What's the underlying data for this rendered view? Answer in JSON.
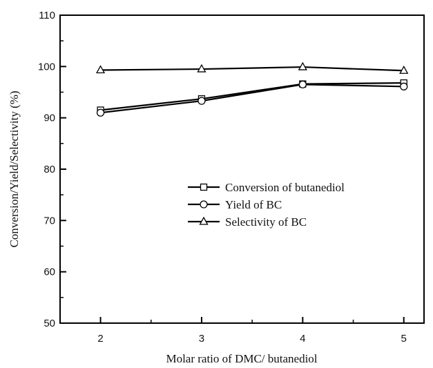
{
  "chart_data": {
    "type": "line",
    "title": "",
    "xlabel": "Molar ratio of DMC/ butanediol",
    "ylabel": "Conversion/Yield/Selectivity (%)",
    "x": [
      2,
      3,
      4,
      5
    ],
    "xlim": [
      1.6,
      5.2
    ],
    "ylim": [
      50,
      110
    ],
    "xticks": [
      2,
      3,
      4,
      5
    ],
    "yticks": [
      50,
      60,
      70,
      80,
      90,
      100,
      110
    ],
    "grid": false,
    "legend_position": "center-right",
    "series": [
      {
        "name": "Conversion of butanediol",
        "marker": "square",
        "color": "#000000",
        "values": [
          91.5,
          93.7,
          96.6,
          96.8
        ]
      },
      {
        "name": "Yield of  BC",
        "marker": "circle",
        "color": "#000000",
        "values": [
          91.0,
          93.3,
          96.5,
          96.1
        ]
      },
      {
        "name": "Selectivity of BC",
        "marker": "triangle",
        "color": "#000000",
        "values": [
          99.3,
          99.5,
          99.9,
          99.2
        ]
      }
    ]
  }
}
